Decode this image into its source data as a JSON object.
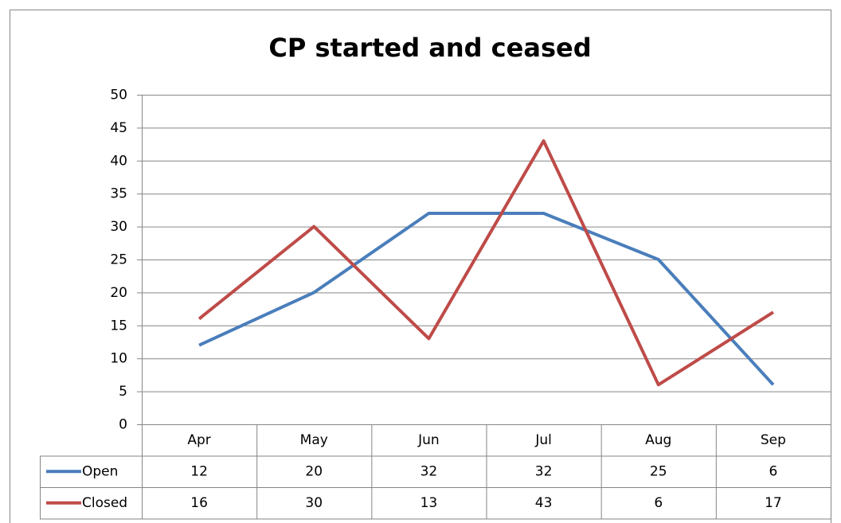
{
  "chart_data": {
    "type": "line",
    "title": "CP started and ceased",
    "categories": [
      "Apr",
      "May",
      "Jun",
      "Jul",
      "Aug",
      "Sep"
    ],
    "series": [
      {
        "name": "Open",
        "color": "#4a7ebb",
        "values": [
          12,
          20,
          32,
          32,
          25,
          6
        ]
      },
      {
        "name": "Closed",
        "color": "#be4b48",
        "values": [
          16,
          30,
          13,
          43,
          6,
          17
        ]
      }
    ],
    "ylim": [
      0,
      50
    ],
    "yticks": [
      0,
      5,
      10,
      15,
      20,
      25,
      30,
      35,
      40,
      45,
      50
    ],
    "grid": true,
    "data_table": true
  }
}
